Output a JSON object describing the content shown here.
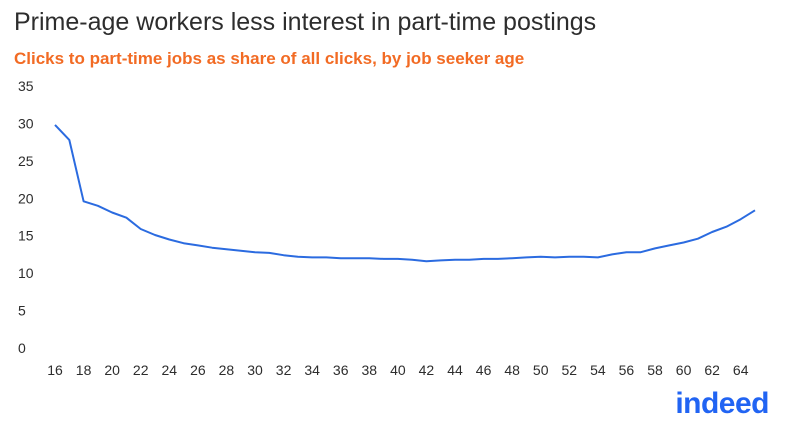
{
  "header": {
    "title": "Prime-age workers less interest in part-time postings",
    "subtitle": "Clicks to part-time jobs as share of all clicks, by job seeker age"
  },
  "brand": {
    "logo_text": "indeed",
    "logo_color": "#2164f3"
  },
  "colors": {
    "line": "#2b6be0",
    "subtitle": "#f26b24",
    "text": "#2d2d2d"
  },
  "chart_data": {
    "type": "line",
    "title": "Prime-age workers less interest in part-time postings",
    "subtitle": "Clicks to part-time jobs as share of all clicks, by job seeker age",
    "xlabel": "",
    "ylabel": "",
    "xlim": [
      16,
      65
    ],
    "ylim": [
      0,
      35
    ],
    "x_ticks": [
      16,
      18,
      20,
      22,
      24,
      26,
      28,
      30,
      32,
      34,
      36,
      38,
      40,
      42,
      44,
      46,
      48,
      50,
      52,
      54,
      56,
      58,
      60,
      62,
      64
    ],
    "y_ticks": [
      0,
      5,
      10,
      15,
      20,
      25,
      30,
      35
    ],
    "grid": false,
    "legend": "none",
    "series": [
      {
        "x": [
          16,
          17,
          18,
          19,
          20,
          21,
          22,
          23,
          24,
          25,
          26,
          27,
          28,
          29,
          30,
          31,
          32,
          33,
          34,
          35,
          36,
          37,
          38,
          39,
          40,
          41,
          42,
          43,
          44,
          45,
          46,
          47,
          48,
          49,
          50,
          51,
          52,
          53,
          54,
          55,
          56,
          57,
          58,
          59,
          60,
          61,
          62,
          63,
          64,
          65
        ],
        "values": [
          29.8,
          27.8,
          19.6,
          19.0,
          18.1,
          17.4,
          15.9,
          15.1,
          14.5,
          14.0,
          13.7,
          13.4,
          13.2,
          13.0,
          12.8,
          12.7,
          12.4,
          12.2,
          12.1,
          12.1,
          12.0,
          12.0,
          12.0,
          11.9,
          11.9,
          11.8,
          11.6,
          11.7,
          11.8,
          11.8,
          11.9,
          11.9,
          12.0,
          12.1,
          12.2,
          12.1,
          12.2,
          12.2,
          12.1,
          12.5,
          12.8,
          12.8,
          13.3,
          13.7,
          14.1,
          14.6,
          15.5,
          16.2,
          17.2,
          18.4
        ]
      }
    ]
  }
}
